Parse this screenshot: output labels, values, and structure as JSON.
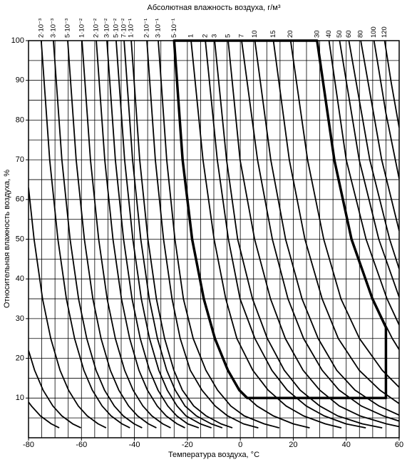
{
  "chart_data": {
    "type": "line",
    "title": "Абсолютная влажность воздуха, г/м³",
    "x_label": "Температура воздуха, °C",
    "y_label": "Относительная влажность воздуха, %",
    "color": "#000000",
    "xlim": [
      -80,
      60
    ],
    "ylim": [
      0,
      100
    ],
    "xticks": [
      -80,
      -60,
      -40,
      -20,
      0,
      20,
      40,
      60
    ],
    "yticks": [
      10,
      20,
      30,
      40,
      50,
      60,
      70,
      80,
      90,
      100
    ],
    "xgrid": [
      -80,
      -75,
      -70,
      -65,
      -60,
      -55,
      -50,
      -45,
      -40,
      -35,
      -30,
      -25,
      -20,
      -15,
      -10,
      -5,
      0,
      5,
      10,
      15,
      20,
      25,
      30,
      35,
      40,
      45,
      50,
      55,
      60
    ],
    "ygrid": [
      0,
      5,
      10,
      15,
      20,
      25,
      30,
      35,
      40,
      45,
      50,
      55,
      60,
      65,
      70,
      75,
      80,
      85,
      90,
      95,
      100
    ],
    "series": [
      {
        "x": [
          -80,
          -77.9,
          -74.7,
          -71.6,
          -68.1,
          -64.9,
          -61.2,
          -57.8,
          -53.7,
          -50.7
        ],
        "values": [
          63,
          50,
          35,
          25,
          17,
          12,
          8,
          5.5,
          3.5,
          2.5
        ]
      },
      {
        "x": [
          -80,
          -77.7,
          -74.5,
          -70.8,
          -67.4,
          -63.3,
          -60.2
        ],
        "values": [
          22,
          17,
          12,
          8,
          5.5,
          3.5,
          2.5
        ]
      },
      {
        "x": [
          -80,
          -78.9,
          -75.5,
          -71.4,
          -68.4
        ],
        "values": [
          9,
          8,
          5.5,
          3.5,
          2.5
        ]
      },
      {
        "name": "2·10⁻³",
        "x": [
          -75.2,
          -72.0,
          -68.9,
          -65.7,
          -62.6,
          -59.1,
          -55.9,
          -52.2,
          -48.8,
          -44.7,
          -41.7
        ],
        "values": [
          100,
          70,
          50,
          35,
          25,
          17,
          12,
          8,
          5.5,
          3.5,
          2.5
        ]
      },
      {
        "name": "3·10⁻³",
        "x": [
          -70.6,
          -67.4,
          -64.3,
          -61.1,
          -58.0,
          -54.5,
          -51.3,
          -47.6,
          -44.2,
          -40.1,
          -37.1
        ],
        "values": [
          100,
          70,
          50,
          35,
          25,
          17,
          12,
          8,
          5.5,
          3.5,
          2.5
        ]
      },
      {
        "name": "5·10⁻³",
        "x": [
          -65.2,
          -62.0,
          -58.9,
          -55.7,
          -52.6,
          -49.1,
          -45.9,
          -42.2,
          -38.8,
          -34.7,
          -31.7
        ],
        "values": [
          100,
          70,
          50,
          35,
          25,
          17,
          12,
          8,
          5.5,
          3.5,
          2.5
        ]
      },
      {
        "name": "1·10⁻²",
        "x": [
          -59.8,
          -56.6,
          -53.5,
          -50.3,
          -47.2,
          -43.7,
          -40.5,
          -36.8,
          -33.4,
          -29.3,
          -26.3
        ],
        "values": [
          100,
          70,
          50,
          35,
          25,
          17,
          12,
          8,
          5.5,
          3.5,
          2.5
        ]
      },
      {
        "name": "2·10⁻²",
        "x": [
          -54.4,
          -51.2,
          -48.1,
          -44.9,
          -41.8,
          -38.3,
          -35.1,
          -31.4,
          -28.0,
          -23.9,
          -20.9
        ],
        "values": [
          100,
          70,
          50,
          35,
          25,
          17,
          12,
          8,
          5.5,
          3.5,
          2.5
        ]
      },
      {
        "name": "3·10⁻²",
        "x": [
          -50.4,
          -47.2,
          -44.1,
          -40.9,
          -37.8,
          -34.3,
          -31.1,
          -27.4,
          -24.0,
          -19.9,
          -15.7
        ],
        "values": [
          100,
          70,
          50,
          35,
          25,
          17,
          12,
          8,
          5.5,
          3.5,
          2.5
        ]
      },
      {
        "name": "5·10⁻²",
        "x": [
          -46.9,
          -43.7,
          -40.6,
          -37.4,
          -34.3,
          -30.8,
          -27.6,
          -23.9,
          -20.5,
          -15.1,
          -10.9
        ],
        "values": [
          100,
          70,
          50,
          35,
          25,
          17,
          12,
          8,
          5.5,
          3.5,
          2.5
        ]
      },
      {
        "name": "7·10⁻²",
        "x": [
          -43.9,
          -40.7,
          -37.6,
          -34.4,
          -31.3,
          -27.8,
          -24.6,
          -20.9,
          -16.6,
          -11.0,
          -6.8
        ],
        "values": [
          100,
          70,
          50,
          35,
          25,
          17,
          12,
          8,
          5.5,
          3.5,
          2.5
        ]
      },
      {
        "name": "1·10⁻¹",
        "x": [
          -41.2,
          -38.0,
          -34.9,
          -31.7,
          -28.6,
          -25.1,
          -21.9,
          -17.6,
          -12.9,
          -7.3,
          -3.0
        ],
        "values": [
          100,
          70,
          50,
          35,
          25,
          17,
          12,
          8,
          5.5,
          3.5,
          2.5
        ]
      },
      {
        "name": "2·10⁻¹",
        "x": [
          -35.3,
          -32.1,
          -29.0,
          -25.8,
          -22.7,
          -18.9,
          -14.5,
          -9.5,
          -4.8,
          1.2,
          6.8
        ],
        "values": [
          100,
          70,
          50,
          35,
          25,
          17,
          12,
          8,
          5.5,
          3.5,
          2.5
        ]
      },
      {
        "name": "3·10⁻¹",
        "x": [
          -31.0,
          -27.8,
          -24.7,
          -21.5,
          -17.8,
          -13.0,
          -8.6,
          -3.6,
          1.5,
          9.0,
          14.7
        ],
        "values": [
          100,
          70,
          50,
          35,
          25,
          17,
          12,
          8,
          5.5,
          3.5,
          2.5
        ]
      },
      {
        "name": "5·10⁻¹",
        "x": [
          -25.0,
          -21.8,
          -18.2,
          -13.8,
          -9.6,
          -4.7,
          -0.4,
          6.3,
          12.5,
          20.0,
          26.2
        ],
        "values": [
          100,
          70,
          50,
          35,
          25,
          17,
          12,
          8,
          5.5,
          3.5,
          2.5
        ]
      },
      {
        "name": "1",
        "x": [
          -18.6,
          -14.1,
          -9.9,
          -5.5,
          -1.3,
          4.7,
          10.5,
          17.3,
          23.9,
          32.1,
          38.2
        ],
        "values": [
          100,
          70,
          50,
          35,
          25,
          17,
          12,
          8,
          5.5,
          3.5,
          2.5
        ]
      },
      {
        "name": "2",
        "x": [
          -13.2,
          -8.7,
          -4.5,
          -0.1,
          5.5,
          11.9,
          17.7,
          24.9,
          31.7,
          39.9,
          47.4
        ],
        "values": [
          100,
          70,
          50,
          35,
          25,
          17,
          12,
          8,
          5.5,
          3.5,
          2.5
        ]
      },
      {
        "name": "3",
        "x": [
          -9.7,
          -5.2,
          -1.0,
          4.6,
          10.2,
          16.6,
          22.6,
          30.0,
          36.8,
          46.1,
          53.6
        ],
        "values": [
          100,
          70,
          50,
          35,
          25,
          17,
          12,
          8,
          5.5,
          3.5,
          2.5
        ]
      },
      {
        "name": "5",
        "x": [
          -4.6,
          -0.1,
          5.4,
          11.4,
          17.0,
          23.7,
          30.0,
          37.4,
          45.2,
          55.2,
          60
        ],
        "values": [
          100,
          70,
          50,
          35,
          25,
          17,
          12,
          8,
          5.5,
          3.5,
          2.8
        ]
      },
      {
        "name": "7",
        "x": [
          0.5,
          6.5,
          12.1,
          18.0,
          23.9,
          30.9,
          37.3,
          45.7,
          54.0,
          60
        ],
        "values": [
          100,
          70,
          50,
          35,
          25,
          17,
          12,
          8,
          5.5,
          4.2
        ]
      },
      {
        "name": "10",
        "x": [
          5.5,
          11.5,
          17.1,
          23.3,
          29.4,
          36.4,
          43.3,
          52.4,
          60
        ],
        "values": [
          100,
          70,
          50,
          35,
          25,
          17,
          12,
          8,
          5.7
        ]
      },
      {
        "name": "15",
        "x": [
          12.5,
          18.5,
          24.4,
          30.9,
          37.0,
          44.9,
          52.7,
          60
        ],
        "values": [
          100,
          70,
          50,
          35,
          25,
          17,
          12,
          8.6
        ]
      },
      {
        "name": "20",
        "x": [
          19.0,
          25.4,
          31.5,
          38.0,
          45.0,
          53.6,
          60
        ],
        "values": [
          100,
          70,
          50,
          35,
          25,
          17,
          12.7
        ]
      },
      {
        "name": "30",
        "x": [
          29.0,
          35.5,
          42.0,
          49.9,
          57.4,
          60
        ],
        "values": [
          100,
          70,
          50,
          35,
          25,
          22.2
        ]
      },
      {
        "name": "40",
        "x": [
          33.5,
          40.0,
          47.5,
          55.4,
          60
        ],
        "values": [
          100,
          70,
          50,
          35,
          28.4
        ]
      },
      {
        "name": "50",
        "x": [
          37.5,
          44.9,
          52.3,
          60
        ],
        "values": [
          100,
          70,
          50,
          35.4
        ]
      },
      {
        "name": "60",
        "x": [
          41.0,
          48.9,
          56.4,
          60
        ],
        "values": [
          100,
          70,
          50,
          42.5
        ]
      },
      {
        "name": "80",
        "x": [
          45.5,
          53.4,
          60
        ],
        "values": [
          100,
          70,
          52.1
        ]
      },
      {
        "name": "100",
        "x": [
          50.5,
          55,
          60
        ],
        "values": [
          100,
          81.7,
          65.2
        ]
      },
      {
        "name": "120",
        "x": [
          54.5,
          57,
          60
        ],
        "values": [
          100,
          89.4,
          78.1
        ]
      }
    ],
    "region": {
      "x": [
        -25,
        29,
        35.5,
        42,
        49.9,
        55,
        55,
        2.6,
        -0.4,
        -4.7,
        -9.6,
        -13.8,
        -18.2,
        -21.8
      ],
      "y": [
        100,
        100,
        70,
        50,
        35,
        27.8,
        10,
        10,
        12,
        17,
        25,
        35,
        50,
        70
      ]
    }
  }
}
